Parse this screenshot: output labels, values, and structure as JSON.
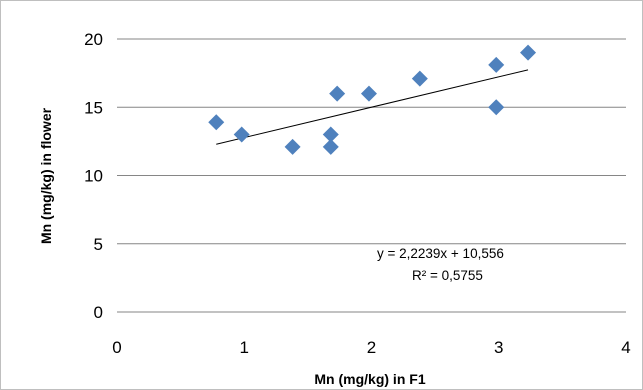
{
  "chart_data": {
    "type": "scatter",
    "title": "",
    "xlabel": "Mn (mg/kg) in F1",
    "ylabel": "Mn (mg/kg) in flower",
    "xlim": [
      0,
      4
    ],
    "ylim": [
      0,
      20
    ],
    "x_ticks": [
      "0",
      "1",
      "2",
      "3",
      "4"
    ],
    "y_ticks": [
      "0",
      "5",
      "10",
      "15",
      "20"
    ],
    "grid": "horizontal",
    "legend": "none",
    "marker_color": "#4f81bd",
    "trendline_color": "#000000",
    "series": [
      {
        "points": [
          {
            "x": 0.78,
            "y": 13.9
          },
          {
            "x": 0.98,
            "y": 13.0
          },
          {
            "x": 1.38,
            "y": 12.1
          },
          {
            "x": 1.68,
            "y": 12.1
          },
          {
            "x": 1.68,
            "y": 13.0
          },
          {
            "x": 1.73,
            "y": 16.0
          },
          {
            "x": 1.98,
            "y": 16.0
          },
          {
            "x": 2.38,
            "y": 17.1
          },
          {
            "x": 2.98,
            "y": 18.1
          },
          {
            "x": 2.98,
            "y": 15.0
          },
          {
            "x": 3.23,
            "y": 19.0
          }
        ]
      }
    ],
    "trendline": {
      "type": "linear",
      "slope": 2.2239,
      "intercept": 10.556,
      "x_start": 0.78,
      "x_end": 3.23,
      "equation_label": "y = 2,2239x + 10,556",
      "r2_label": "R² = 0,5755"
    }
  }
}
